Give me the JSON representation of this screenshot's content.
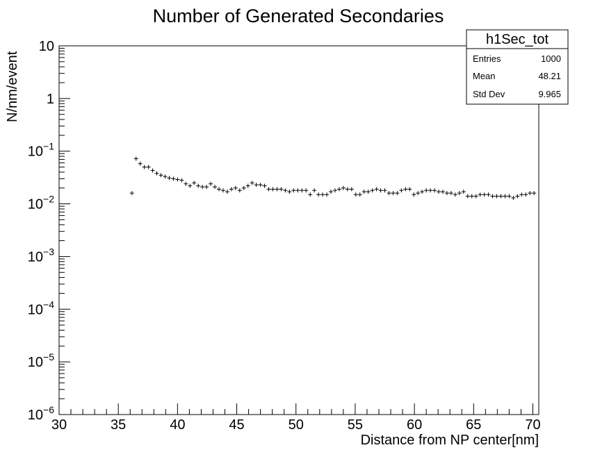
{
  "chart_data": {
    "type": "scatter",
    "title": "Number of Generated Secondaries",
    "xlabel": "Distance from NP center[nm]",
    "ylabel": "N/nm/event",
    "xlim": [
      30,
      70.5
    ],
    "ylim": [
      1e-06,
      10
    ],
    "y_scale": "log",
    "grid": false,
    "x_ticks": [
      "30",
      "35",
      "40",
      "45",
      "50",
      "55",
      "60",
      "65",
      "70"
    ],
    "y_ticks": [
      {
        "value": 1e-06,
        "base": "10",
        "exp": "−6"
      },
      {
        "value": 1e-05,
        "base": "10",
        "exp": "−5"
      },
      {
        "value": 0.0001,
        "base": "10",
        "exp": "−4"
      },
      {
        "value": 0.001,
        "base": "10",
        "exp": "−3"
      },
      {
        "value": 0.01,
        "base": "10",
        "exp": "−2"
      },
      {
        "value": 0.1,
        "base": "10",
        "exp": "−1"
      },
      {
        "value": 1,
        "base": "1",
        "exp": ""
      },
      {
        "value": 10,
        "base": "10",
        "exp": ""
      }
    ],
    "bin_width": 0.35,
    "series": [
      {
        "marker": "cross",
        "x": [
          36.15,
          36.5,
          36.85,
          37.2,
          37.55,
          37.9,
          38.25,
          38.6,
          38.95,
          39.3,
          39.65,
          40.0,
          40.35,
          40.7,
          41.05,
          41.4,
          41.75,
          42.1,
          42.45,
          42.8,
          43.15,
          43.5,
          43.85,
          44.2,
          44.55,
          44.9,
          45.25,
          45.6,
          45.95,
          46.3,
          46.65,
          47.0,
          47.35,
          47.7,
          48.05,
          48.4,
          48.75,
          49.1,
          49.45,
          49.8,
          50.15,
          50.5,
          50.85,
          51.2,
          51.55,
          51.9,
          52.25,
          52.6,
          52.95,
          53.3,
          53.65,
          54.0,
          54.35,
          54.7,
          55.05,
          55.4,
          55.75,
          56.1,
          56.45,
          56.8,
          57.15,
          57.5,
          57.85,
          58.2,
          58.55,
          58.9,
          59.25,
          59.6,
          59.95,
          60.3,
          60.65,
          61.0,
          61.35,
          61.7,
          62.05,
          62.4,
          62.75,
          63.1,
          63.45,
          63.8,
          64.15,
          64.5,
          64.85,
          65.2,
          65.55,
          65.9,
          66.25,
          66.6,
          66.95,
          67.3,
          67.65,
          68.0,
          68.35,
          68.7,
          69.05,
          69.4,
          69.75,
          70.1
        ],
        "y": [
          0.016,
          0.072,
          0.058,
          0.05,
          0.05,
          0.043,
          0.038,
          0.035,
          0.033,
          0.031,
          0.03,
          0.029,
          0.028,
          0.024,
          0.022,
          0.025,
          0.022,
          0.021,
          0.021,
          0.024,
          0.021,
          0.019,
          0.018,
          0.017,
          0.019,
          0.02,
          0.018,
          0.02,
          0.022,
          0.025,
          0.023,
          0.023,
          0.022,
          0.019,
          0.019,
          0.019,
          0.019,
          0.018,
          0.017,
          0.018,
          0.018,
          0.018,
          0.018,
          0.015,
          0.018,
          0.015,
          0.015,
          0.015,
          0.017,
          0.018,
          0.019,
          0.02,
          0.019,
          0.019,
          0.015,
          0.015,
          0.017,
          0.017,
          0.018,
          0.019,
          0.018,
          0.018,
          0.016,
          0.016,
          0.016,
          0.018,
          0.019,
          0.019,
          0.015,
          0.016,
          0.017,
          0.018,
          0.018,
          0.018,
          0.017,
          0.017,
          0.016,
          0.016,
          0.015,
          0.016,
          0.017,
          0.014,
          0.014,
          0.014,
          0.015,
          0.015,
          0.015,
          0.014,
          0.014,
          0.014,
          0.014,
          0.014,
          0.013,
          0.014,
          0.015,
          0.015,
          0.016,
          0.016
        ]
      }
    ],
    "stats_box": {
      "title": "h1Sec_tot",
      "rows": [
        {
          "label": "Entries",
          "value": "1000"
        },
        {
          "label": "Mean",
          "value": "48.21"
        },
        {
          "label": "Std Dev",
          "value": "9.965"
        }
      ]
    }
  }
}
